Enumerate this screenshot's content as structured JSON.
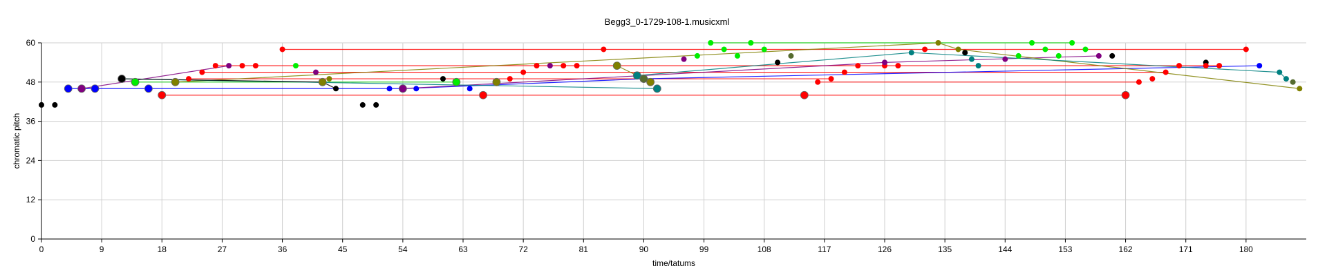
{
  "chart_data": {
    "type": "scatter",
    "title": "Begg3_0-1729-108-1.musicxml",
    "xlabel": "time/tatums",
    "ylabel": "chromatic pitch",
    "xlim": [
      0,
      189
    ],
    "ylim": [
      0,
      60
    ],
    "xticks": [
      0,
      9,
      18,
      27,
      36,
      45,
      54,
      63,
      72,
      81,
      90,
      99,
      108,
      117,
      126,
      135,
      144,
      153,
      162,
      171,
      180
    ],
    "yticks": [
      0,
      12,
      24,
      36,
      48,
      60
    ],
    "grid": true,
    "series": [
      {
        "color": "#000000",
        "points": [
          [
            0,
            41,
            "s"
          ],
          [
            2,
            41,
            "s"
          ],
          [
            12,
            49,
            "l"
          ],
          [
            44,
            46,
            "s"
          ],
          [
            48,
            41,
            "s"
          ],
          [
            50,
            41,
            "s"
          ],
          [
            60,
            49,
            "s"
          ],
          [
            110,
            54,
            "s"
          ],
          [
            138,
            57,
            "s"
          ],
          [
            160,
            56,
            "s"
          ],
          [
            174,
            54,
            "s"
          ]
        ]
      },
      {
        "color": "#0000ff",
        "points": [
          [
            4,
            46,
            "l"
          ],
          [
            8,
            46,
            "l"
          ],
          [
            16,
            46,
            "l"
          ],
          [
            52,
            46,
            "s"
          ],
          [
            56,
            46,
            "s"
          ],
          [
            64,
            46,
            "s"
          ],
          [
            182,
            53,
            "s"
          ]
        ]
      },
      {
        "color": "#ff0000",
        "points": [
          [
            18,
            44,
            "l"
          ],
          [
            22,
            49,
            "s"
          ],
          [
            24,
            51,
            "s"
          ],
          [
            26,
            53,
            "s"
          ],
          [
            30,
            53,
            "s"
          ],
          [
            32,
            53,
            "s"
          ],
          [
            36,
            58,
            "s"
          ],
          [
            66,
            44,
            "l"
          ],
          [
            68,
            48,
            "s"
          ],
          [
            70,
            49,
            "s"
          ],
          [
            72,
            51,
            "s"
          ],
          [
            74,
            53,
            "s"
          ],
          [
            78,
            53,
            "s"
          ],
          [
            80,
            53,
            "s"
          ],
          [
            84,
            58,
            "s"
          ],
          [
            114,
            44,
            "l"
          ],
          [
            116,
            48,
            "s"
          ],
          [
            118,
            49,
            "s"
          ],
          [
            120,
            51,
            "s"
          ],
          [
            122,
            53,
            "s"
          ],
          [
            126,
            53,
            "s"
          ],
          [
            128,
            53,
            "s"
          ],
          [
            132,
            58,
            "s"
          ],
          [
            162,
            44,
            "l"
          ],
          [
            164,
            48,
            "s"
          ],
          [
            166,
            49,
            "s"
          ],
          [
            168,
            51,
            "s"
          ],
          [
            170,
            53,
            "s"
          ],
          [
            174,
            53,
            "s"
          ],
          [
            176,
            53,
            "s"
          ],
          [
            180,
            58,
            "s"
          ]
        ]
      },
      {
        "color": "#00ee00",
        "points": [
          [
            14,
            48,
            "l"
          ],
          [
            38,
            53,
            "s"
          ],
          [
            62,
            48,
            "l"
          ],
          [
            98,
            56,
            "s"
          ],
          [
            100,
            60,
            "s"
          ],
          [
            102,
            58,
            "s"
          ],
          [
            104,
            56,
            "s"
          ],
          [
            106,
            60,
            "s"
          ],
          [
            108,
            58,
            "s"
          ],
          [
            146,
            56,
            "s"
          ],
          [
            148,
            60,
            "s"
          ],
          [
            150,
            58,
            "s"
          ],
          [
            152,
            56,
            "s"
          ],
          [
            154,
            60,
            "s"
          ],
          [
            156,
            58,
            "s"
          ]
        ]
      },
      {
        "color": "#800080",
        "points": [
          [
            6,
            46,
            "l"
          ],
          [
            28,
            53,
            "s"
          ],
          [
            41,
            51,
            "s"
          ],
          [
            54,
            46,
            "l"
          ],
          [
            76,
            53,
            "s"
          ],
          [
            96,
            55,
            "s"
          ],
          [
            126,
            54,
            "s"
          ],
          [
            144,
            55,
            "s"
          ],
          [
            158,
            56,
            "s"
          ]
        ]
      },
      {
        "color": "#808000",
        "points": [
          [
            20,
            48,
            "l"
          ],
          [
            42,
            48,
            "l"
          ],
          [
            43,
            49,
            "s"
          ],
          [
            68,
            48,
            "l"
          ],
          [
            86,
            53,
            "l"
          ],
          [
            91,
            48,
            "l"
          ],
          [
            134,
            60,
            "s"
          ],
          [
            137,
            58,
            "s"
          ],
          [
            188,
            46,
            "s"
          ]
        ]
      },
      {
        "color": "#008080",
        "points": [
          [
            89,
            50,
            "l"
          ],
          [
            92,
            46,
            "l"
          ],
          [
            130,
            57,
            "s"
          ],
          [
            139,
            55,
            "s"
          ],
          [
            140,
            53,
            "s"
          ],
          [
            185,
            51,
            "s"
          ],
          [
            186,
            49,
            "s"
          ]
        ]
      },
      {
        "color": "#556b2f",
        "points": [
          [
            90,
            49,
            "l"
          ],
          [
            112,
            56,
            "s"
          ],
          [
            187,
            48,
            "s"
          ]
        ]
      }
    ],
    "connections": [
      {
        "color": "#ff0000",
        "pairs": [
          [
            36,
            58,
            84,
            58
          ],
          [
            84,
            58,
            180,
            58
          ],
          [
            18,
            44,
            66,
            44
          ],
          [
            66,
            44,
            114,
            44
          ],
          [
            114,
            44,
            162,
            44
          ],
          [
            22,
            49,
            118,
            49
          ],
          [
            24,
            51,
            168,
            51
          ],
          [
            26,
            53,
            176,
            53
          ],
          [
            116,
            48,
            164,
            48
          ]
        ]
      },
      {
        "color": "#0000ff",
        "pairs": [
          [
            4,
            46,
            16,
            46
          ],
          [
            16,
            46,
            54,
            46
          ],
          [
            54,
            46,
            90,
            49
          ],
          [
            90,
            49,
            182,
            53
          ]
        ]
      },
      {
        "color": "#00cc00",
        "points_only": true,
        "pairs": [
          [
            100,
            60,
            154,
            60
          ],
          [
            14,
            48,
            62,
            48
          ]
        ]
      },
      {
        "color": "#800080",
        "pairs": [
          [
            6,
            46,
            28,
            53
          ],
          [
            54,
            46,
            126,
            54
          ],
          [
            126,
            54,
            158,
            56
          ]
        ]
      },
      {
        "color": "#808000",
        "pairs": [
          [
            86,
            53,
            91,
            48
          ],
          [
            20,
            48,
            134,
            60
          ],
          [
            134,
            60,
            137,
            58
          ],
          [
            137,
            58,
            188,
            46
          ]
        ]
      },
      {
        "color": "#008080",
        "pairs": [
          [
            12,
            49,
            92,
            46
          ],
          [
            89,
            50,
            130,
            57
          ],
          [
            130,
            57,
            185,
            51
          ],
          [
            185,
            51,
            186,
            49
          ]
        ]
      },
      {
        "color": "#000000",
        "pairs": [
          [
            12,
            49,
            42,
            48
          ],
          [
            42,
            48,
            44,
            46
          ]
        ]
      }
    ]
  }
}
